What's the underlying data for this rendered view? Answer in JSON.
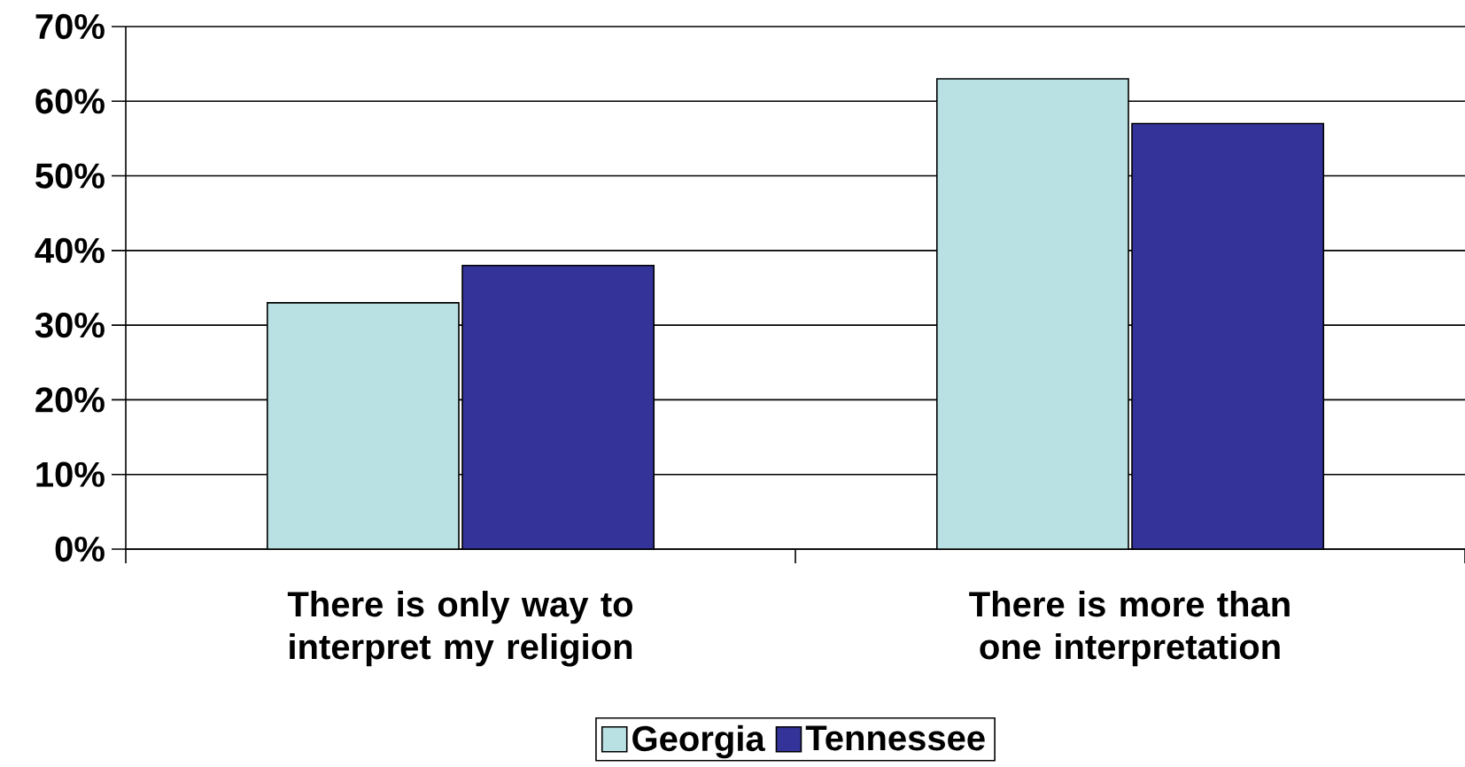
{
  "chart_data": {
    "type": "bar",
    "categories": [
      "There is only way to interpret my religion",
      "There is more than one interpretation"
    ],
    "series": [
      {
        "name": "Georgia",
        "color": "#b9e0e3",
        "values": [
          33,
          63
        ]
      },
      {
        "name": "Tennessee",
        "color": "#333399",
        "values": [
          38,
          57
        ]
      }
    ],
    "ylim": [
      0,
      70
    ],
    "yticks": [
      {
        "value": 0,
        "label": "0%"
      },
      {
        "value": 10,
        "label": "10%"
      },
      {
        "value": 20,
        "label": "20%"
      },
      {
        "value": 30,
        "label": "30%"
      },
      {
        "value": 40,
        "label": "40%"
      },
      {
        "value": 50,
        "label": "50%"
      },
      {
        "value": 60,
        "label": "60%"
      },
      {
        "value": 70,
        "label": "70%"
      }
    ],
    "grid": "y",
    "legend": "bottom"
  }
}
